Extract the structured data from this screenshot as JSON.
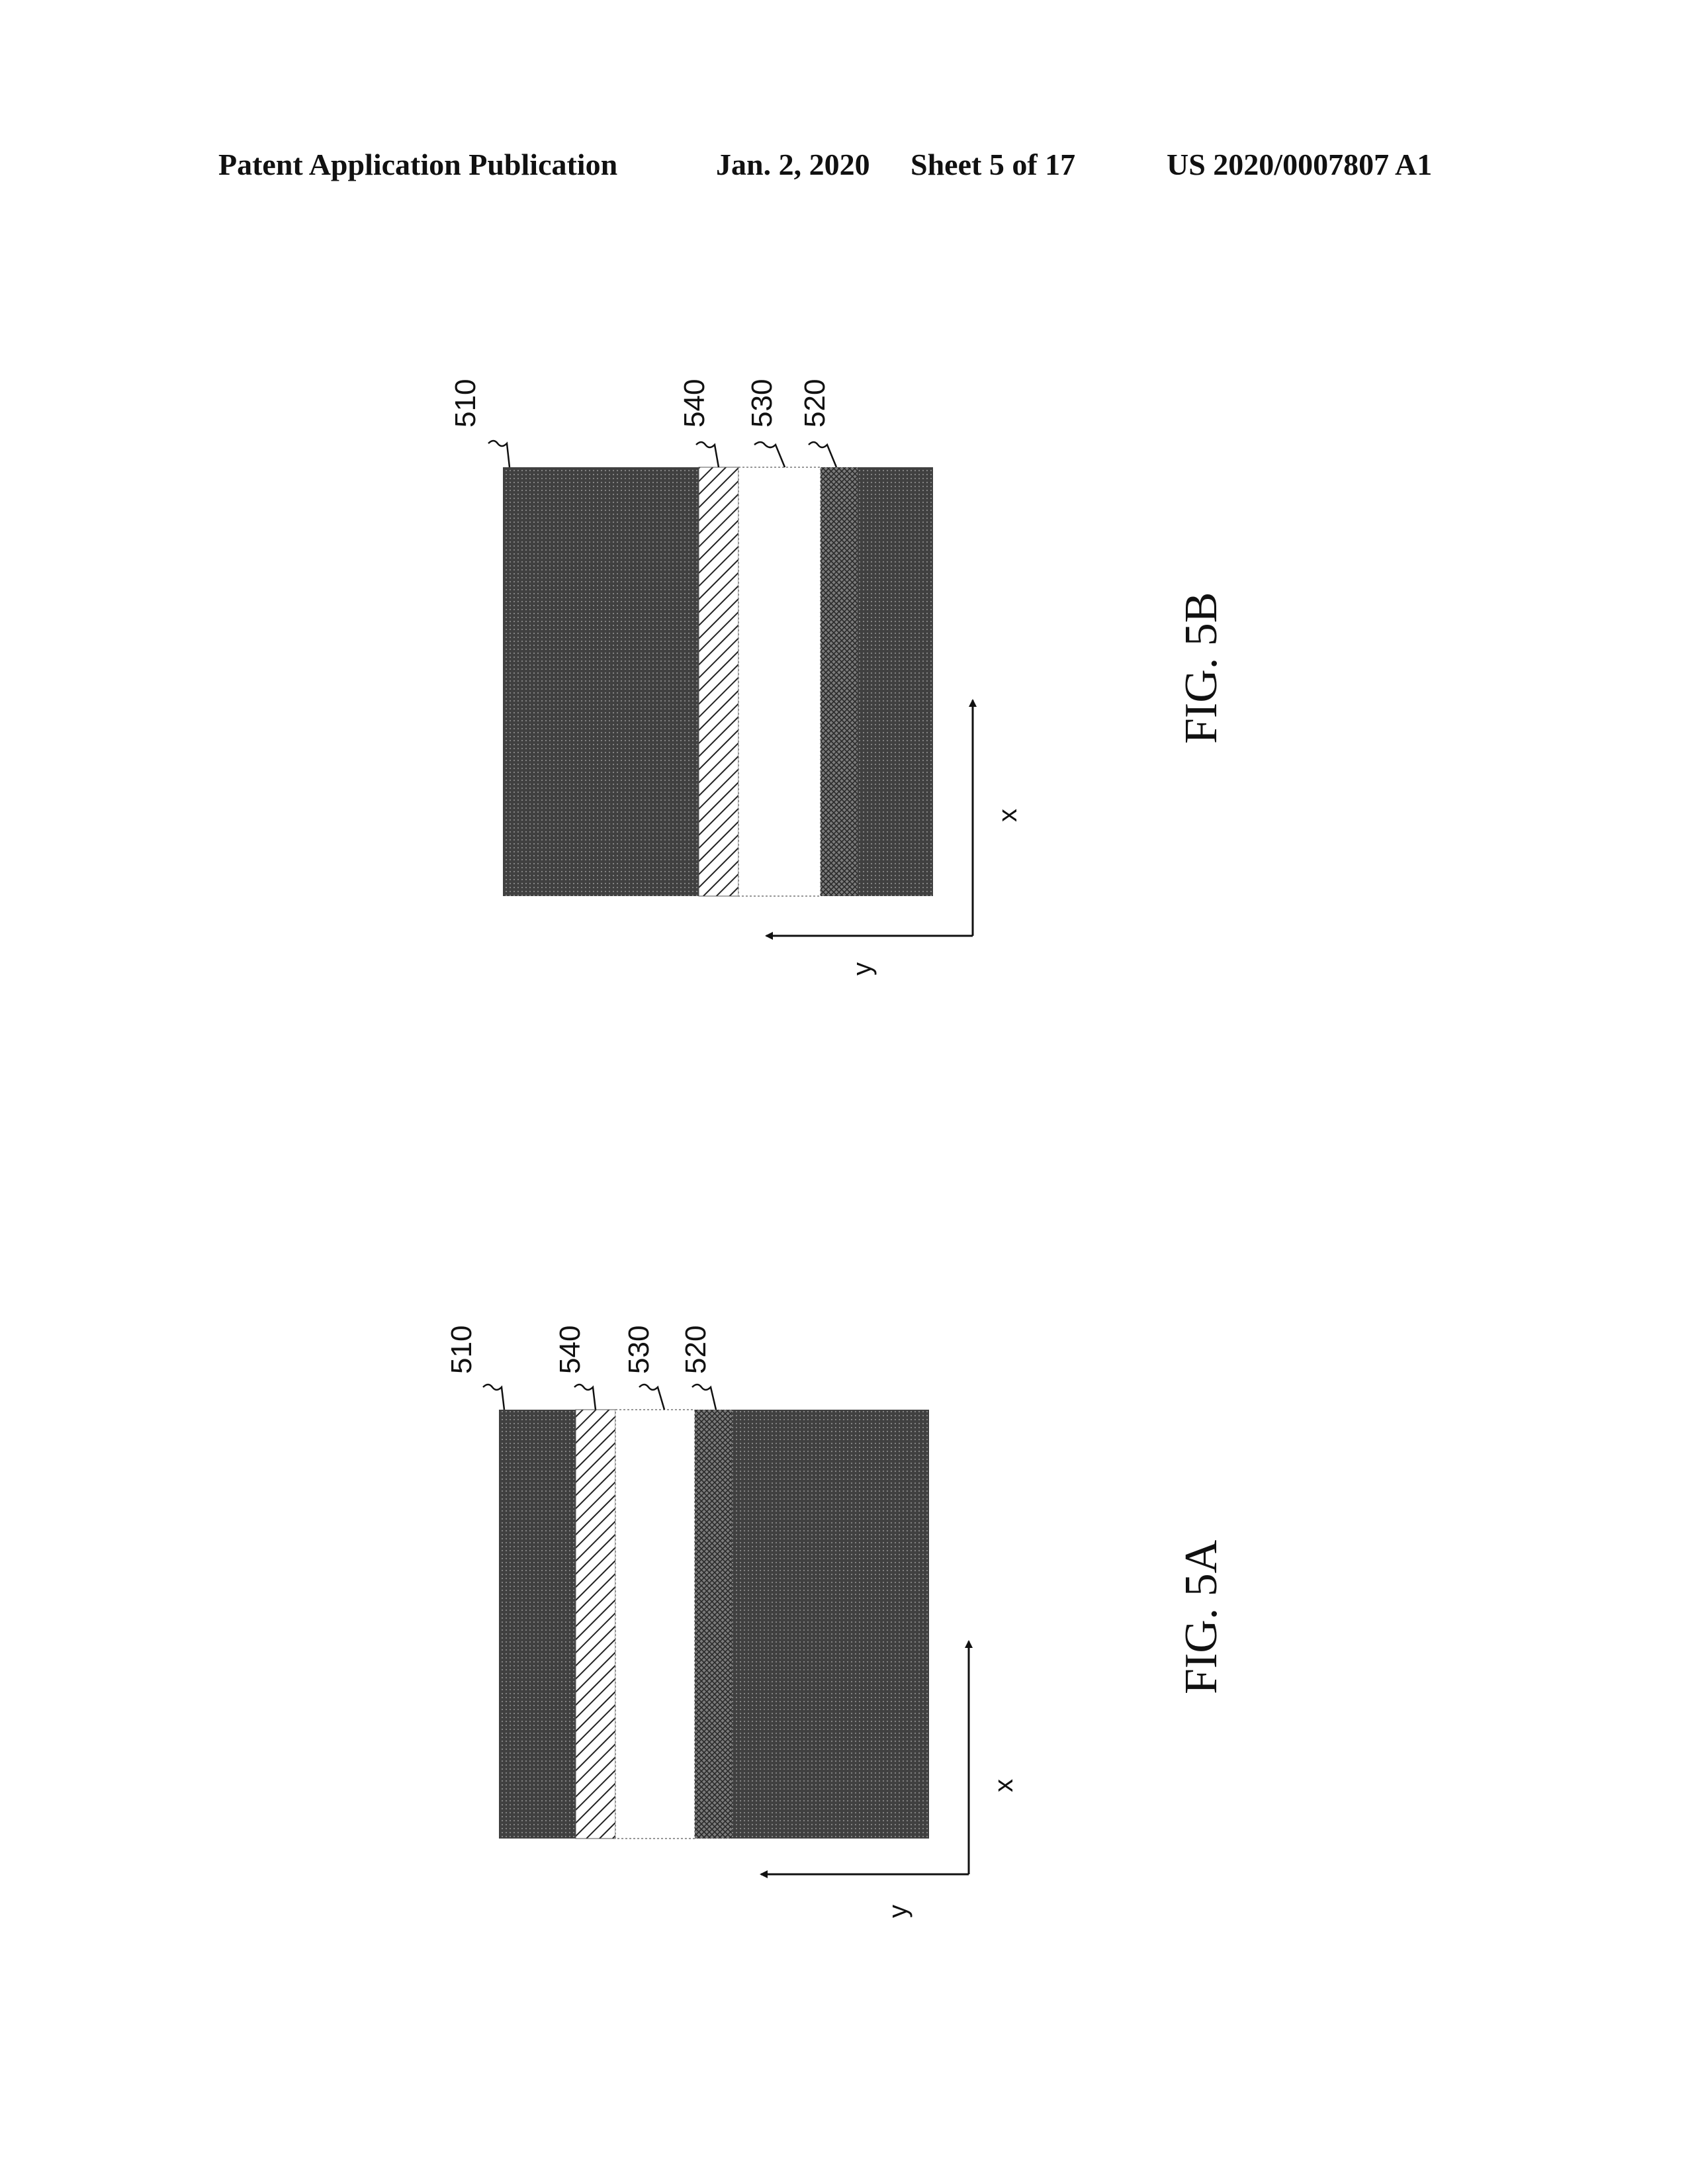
{
  "header": {
    "publication": "Patent Application Publication",
    "date": "Jan. 2, 2020",
    "sheet": "Sheet 5 of 17",
    "number": "US 2020/0007807 A1"
  },
  "figures": [
    {
      "id": "5B",
      "caption": "FIG. 5B",
      "labels": [
        "510",
        "540",
        "530",
        "520"
      ],
      "axes": {
        "x": "x",
        "y": "y"
      }
    },
    {
      "id": "5A",
      "caption": "FIG. 5A",
      "labels": [
        "510",
        "540",
        "530",
        "520"
      ],
      "axes": {
        "x": "x",
        "y": "y"
      }
    }
  ],
  "colors": {
    "dark_fill": "#3a3a3a",
    "cross_fill": "#6a6a6a",
    "hatch_stroke": "#222222",
    "line": "#111111"
  }
}
